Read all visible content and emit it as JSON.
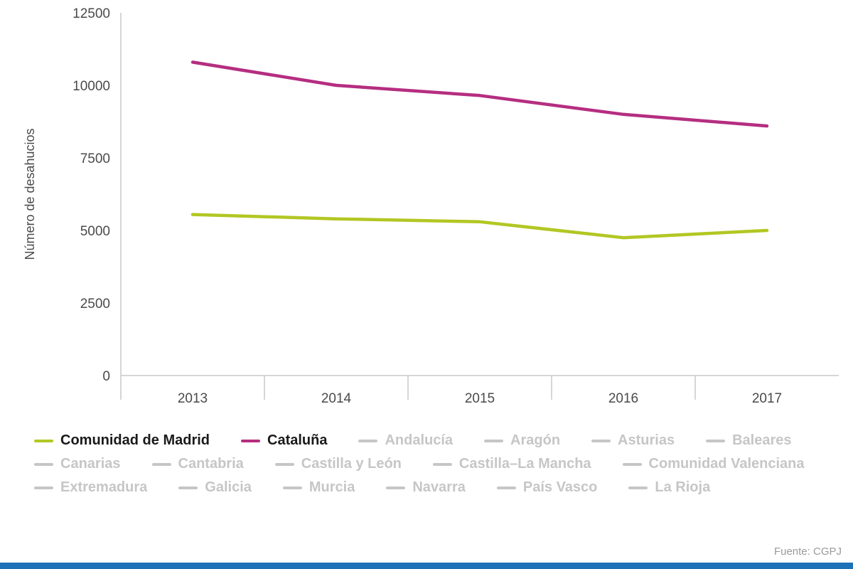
{
  "chart_data": {
    "type": "line",
    "x": [
      2013,
      2014,
      2015,
      2016,
      2017
    ],
    "title": "",
    "xlabel": "",
    "ylabel": "Número de desahucios",
    "ylim": [
      0,
      12500
    ],
    "yticks": [
      0,
      2500,
      5000,
      7500,
      10000,
      12500
    ],
    "grid": false,
    "legend_position": "bottom",
    "series": [
      {
        "name": "Comunidad de Madrid",
        "values": [
          5550,
          5400,
          5300,
          4750,
          5000
        ],
        "color": "#b2c723",
        "active": true
      },
      {
        "name": "Cataluña",
        "values": [
          10800,
          10000,
          9650,
          9000,
          8600
        ],
        "color": "#b52e80",
        "active": true
      }
    ],
    "inactive_series": [
      "Andalucía",
      "Aragón",
      "Asturias",
      "Baleares",
      "Canarias",
      "Cantabria",
      "Castilla y León",
      "Castilla–La Mancha",
      "Comunidad Valenciana",
      "Extremadura",
      "Galicia",
      "Murcia",
      "Navarra",
      "País Vasco",
      "La Rioja"
    ]
  },
  "footer": {
    "source": "Fuente: CGPJ"
  },
  "colors": {
    "accent_bar": "#1d71b8",
    "inactive_legend": "#c6c6c6",
    "axis_text": "#4a4a4a",
    "axis_line": "#c9c9c9"
  }
}
